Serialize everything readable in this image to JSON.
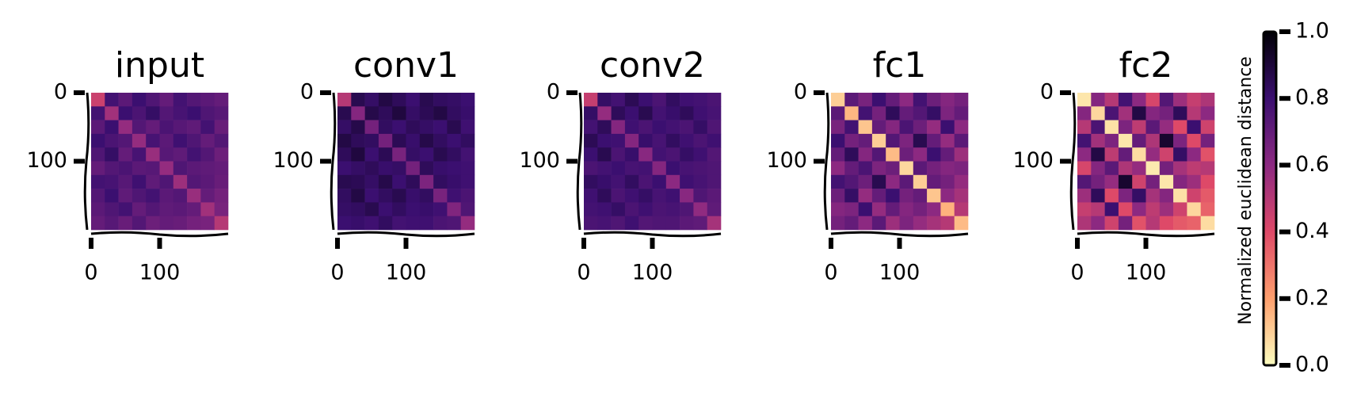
{
  "chart_data": [
    {
      "type": "heatmap",
      "title": "input",
      "xlim": [
        0,
        200
      ],
      "ylim": [
        200,
        0
      ],
      "xticks": [
        0,
        100
      ],
      "yticks": [
        0,
        100
      ],
      "matrix": [
        [
          0.45,
          0.78,
          0.72,
          0.8,
          0.75,
          0.7,
          0.78,
          0.74,
          0.72,
          0.7
        ],
        [
          0.78,
          0.55,
          0.8,
          0.76,
          0.82,
          0.74,
          0.77,
          0.8,
          0.75,
          0.73
        ],
        [
          0.72,
          0.8,
          0.58,
          0.74,
          0.7,
          0.76,
          0.73,
          0.71,
          0.78,
          0.69
        ],
        [
          0.8,
          0.76,
          0.74,
          0.58,
          0.77,
          0.72,
          0.79,
          0.75,
          0.7,
          0.74
        ],
        [
          0.75,
          0.82,
          0.7,
          0.77,
          0.57,
          0.73,
          0.71,
          0.78,
          0.74,
          0.68
        ],
        [
          0.7,
          0.74,
          0.76,
          0.72,
          0.73,
          0.58,
          0.75,
          0.72,
          0.71,
          0.7
        ],
        [
          0.78,
          0.77,
          0.73,
          0.79,
          0.71,
          0.75,
          0.56,
          0.74,
          0.72,
          0.69
        ],
        [
          0.74,
          0.8,
          0.71,
          0.75,
          0.78,
          0.72,
          0.74,
          0.57,
          0.7,
          0.66
        ],
        [
          0.72,
          0.75,
          0.78,
          0.7,
          0.74,
          0.71,
          0.72,
          0.7,
          0.55,
          0.65
        ],
        [
          0.7,
          0.73,
          0.69,
          0.74,
          0.68,
          0.7,
          0.69,
          0.66,
          0.65,
          0.5
        ]
      ]
    },
    {
      "type": "heatmap",
      "title": "conv1",
      "xlim": [
        0,
        200
      ],
      "ylim": [
        200,
        0
      ],
      "xticks": [
        0,
        100
      ],
      "yticks": [
        0,
        100
      ],
      "matrix": [
        [
          0.5,
          0.86,
          0.82,
          0.88,
          0.84,
          0.8,
          0.86,
          0.83,
          0.82,
          0.8
        ],
        [
          0.86,
          0.62,
          0.87,
          0.84,
          0.89,
          0.82,
          0.85,
          0.88,
          0.83,
          0.81
        ],
        [
          0.82,
          0.87,
          0.66,
          0.83,
          0.8,
          0.84,
          0.82,
          0.8,
          0.86,
          0.79
        ],
        [
          0.88,
          0.84,
          0.83,
          0.66,
          0.85,
          0.81,
          0.87,
          0.83,
          0.8,
          0.83
        ],
        [
          0.84,
          0.89,
          0.8,
          0.85,
          0.65,
          0.82,
          0.8,
          0.86,
          0.83,
          0.78
        ],
        [
          0.8,
          0.82,
          0.84,
          0.81,
          0.82,
          0.66,
          0.84,
          0.81,
          0.8,
          0.79
        ],
        [
          0.86,
          0.85,
          0.82,
          0.87,
          0.8,
          0.84,
          0.64,
          0.83,
          0.81,
          0.79
        ],
        [
          0.83,
          0.88,
          0.8,
          0.83,
          0.86,
          0.81,
          0.83,
          0.65,
          0.79,
          0.76
        ],
        [
          0.82,
          0.83,
          0.86,
          0.8,
          0.83,
          0.8,
          0.81,
          0.79,
          0.63,
          0.75
        ],
        [
          0.8,
          0.81,
          0.79,
          0.83,
          0.78,
          0.79,
          0.79,
          0.76,
          0.75,
          0.58
        ]
      ]
    },
    {
      "type": "heatmap",
      "title": "conv2",
      "xlim": [
        0,
        200
      ],
      "ylim": [
        200,
        0
      ],
      "xticks": [
        0,
        100
      ],
      "yticks": [
        0,
        100
      ],
      "matrix": [
        [
          0.46,
          0.82,
          0.78,
          0.85,
          0.8,
          0.76,
          0.83,
          0.79,
          0.78,
          0.76
        ],
        [
          0.82,
          0.58,
          0.84,
          0.8,
          0.86,
          0.78,
          0.81,
          0.84,
          0.79,
          0.77
        ],
        [
          0.78,
          0.84,
          0.62,
          0.79,
          0.76,
          0.8,
          0.78,
          0.76,
          0.82,
          0.75
        ],
        [
          0.85,
          0.8,
          0.79,
          0.62,
          0.81,
          0.77,
          0.83,
          0.79,
          0.76,
          0.79
        ],
        [
          0.8,
          0.86,
          0.76,
          0.81,
          0.61,
          0.78,
          0.76,
          0.82,
          0.79,
          0.74
        ],
        [
          0.76,
          0.78,
          0.8,
          0.77,
          0.78,
          0.62,
          0.8,
          0.77,
          0.76,
          0.75
        ],
        [
          0.83,
          0.81,
          0.78,
          0.83,
          0.76,
          0.8,
          0.6,
          0.79,
          0.77,
          0.75
        ],
        [
          0.79,
          0.84,
          0.76,
          0.79,
          0.82,
          0.77,
          0.79,
          0.61,
          0.75,
          0.72
        ],
        [
          0.78,
          0.79,
          0.82,
          0.76,
          0.79,
          0.76,
          0.77,
          0.75,
          0.59,
          0.71
        ],
        [
          0.76,
          0.77,
          0.75,
          0.79,
          0.74,
          0.75,
          0.75,
          0.72,
          0.71,
          0.54
        ]
      ]
    },
    {
      "type": "heatmap",
      "title": "fc1",
      "xlim": [
        0,
        200
      ],
      "ylim": [
        200,
        0
      ],
      "xticks": [
        0,
        100
      ],
      "yticks": [
        0,
        100
      ],
      "matrix": [
        [
          0.1,
          0.72,
          0.65,
          0.8,
          0.7,
          0.6,
          0.78,
          0.68,
          0.62,
          0.66
        ],
        [
          0.72,
          0.15,
          0.78,
          0.66,
          0.84,
          0.7,
          0.74,
          0.82,
          0.64,
          0.7
        ],
        [
          0.65,
          0.78,
          0.12,
          0.7,
          0.62,
          0.76,
          0.68,
          0.58,
          0.8,
          0.6
        ],
        [
          0.8,
          0.66,
          0.7,
          0.1,
          0.74,
          0.64,
          0.86,
          0.7,
          0.58,
          0.72
        ],
        [
          0.7,
          0.84,
          0.62,
          0.74,
          0.14,
          0.68,
          0.6,
          0.8,
          0.7,
          0.56
        ],
        [
          0.6,
          0.7,
          0.76,
          0.64,
          0.68,
          0.08,
          0.72,
          0.66,
          0.62,
          0.64
        ],
        [
          0.78,
          0.74,
          0.68,
          0.86,
          0.6,
          0.72,
          0.1,
          0.7,
          0.66,
          0.58
        ],
        [
          0.68,
          0.82,
          0.58,
          0.7,
          0.8,
          0.66,
          0.7,
          0.12,
          0.6,
          0.54
        ],
        [
          0.62,
          0.64,
          0.8,
          0.58,
          0.7,
          0.62,
          0.66,
          0.6,
          0.16,
          0.5
        ],
        [
          0.66,
          0.7,
          0.6,
          0.72,
          0.56,
          0.64,
          0.58,
          0.54,
          0.5,
          0.14
        ]
      ]
    },
    {
      "type": "heatmap",
      "title": "fc2",
      "xlim": [
        0,
        200
      ],
      "ylim": [
        200,
        0
      ],
      "xticks": [
        0,
        100
      ],
      "yticks": [
        0,
        100
      ],
      "matrix": [
        [
          0.05,
          0.62,
          0.5,
          0.78,
          0.6,
          0.42,
          0.74,
          0.56,
          0.46,
          0.52
        ],
        [
          0.62,
          0.08,
          0.76,
          0.55,
          0.88,
          0.62,
          0.66,
          0.84,
          0.5,
          0.6
        ],
        [
          0.5,
          0.76,
          0.06,
          0.64,
          0.48,
          0.72,
          0.58,
          0.4,
          0.8,
          0.44
        ],
        [
          0.78,
          0.55,
          0.64,
          0.05,
          0.7,
          0.52,
          0.92,
          0.64,
          0.4,
          0.66
        ],
        [
          0.6,
          0.88,
          0.48,
          0.7,
          0.07,
          0.58,
          0.44,
          0.82,
          0.6,
          0.38
        ],
        [
          0.42,
          0.62,
          0.72,
          0.52,
          0.58,
          0.04,
          0.66,
          0.54,
          0.48,
          0.5
        ],
        [
          0.74,
          0.66,
          0.58,
          0.92,
          0.44,
          0.66,
          0.05,
          0.62,
          0.56,
          0.4
        ],
        [
          0.56,
          0.84,
          0.4,
          0.64,
          0.82,
          0.54,
          0.62,
          0.06,
          0.44,
          0.36
        ],
        [
          0.46,
          0.5,
          0.8,
          0.4,
          0.6,
          0.48,
          0.56,
          0.44,
          0.08,
          0.34
        ],
        [
          0.52,
          0.6,
          0.44,
          0.66,
          0.38,
          0.5,
          0.4,
          0.36,
          0.34,
          0.07
        ]
      ]
    },
    {
      "type": "colorbar",
      "label": "Normalized euclidean distance",
      "colormap": "magma_r",
      "ylim": [
        0,
        1
      ],
      "yticks": [
        {
          "value": 0,
          "label": "0.0"
        },
        {
          "value": 0.2,
          "label": "0.2"
        },
        {
          "value": 0.4,
          "label": "0.4"
        },
        {
          "value": 0.6,
          "label": "0.6"
        },
        {
          "value": 0.8,
          "label": "0.8"
        },
        {
          "value": 1,
          "label": "1.0"
        }
      ]
    }
  ]
}
